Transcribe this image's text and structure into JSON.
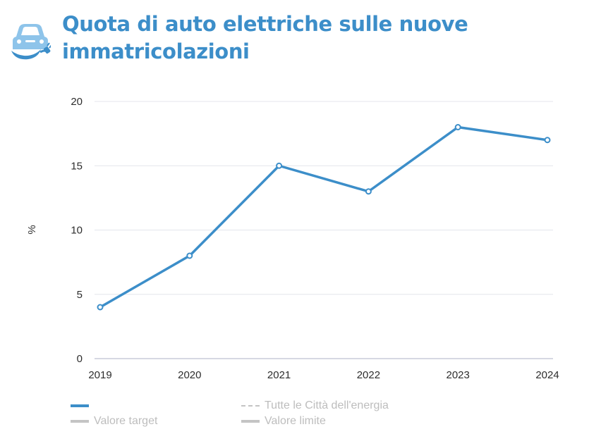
{
  "header": {
    "title_line1": "Quota di auto elettriche sulle nuove",
    "title_line2": "immatricolazioni",
    "icon": "electric-car-icon",
    "accent_color": "#3c8ec9"
  },
  "chart_data": {
    "type": "line",
    "x": [
      "2019",
      "2020",
      "2021",
      "2022",
      "2023",
      "2024"
    ],
    "series": [
      {
        "name": "",
        "values": [
          4,
          8,
          15,
          13,
          18,
          17
        ],
        "color": "#3c8ec9"
      }
    ],
    "xlabel": "",
    "ylabel": "%",
    "ylim": [
      0,
      20
    ],
    "yticks": [
      "0",
      "5",
      "10",
      "15",
      "20"
    ],
    "grid": true,
    "legend_placement": "bottom",
    "legend": [
      {
        "label": "",
        "style": "solid",
        "color": "#3c8ec9",
        "active": true
      },
      {
        "label": "Tutte le Città dell'energia",
        "style": "dashed",
        "color": "#c4c4c4",
        "active": false
      },
      {
        "label": "Valore target",
        "style": "solid",
        "color": "#c4c4c4",
        "active": false
      },
      {
        "label": "Valore limite",
        "style": "solid",
        "color": "#c4c4c4",
        "active": false
      }
    ]
  }
}
